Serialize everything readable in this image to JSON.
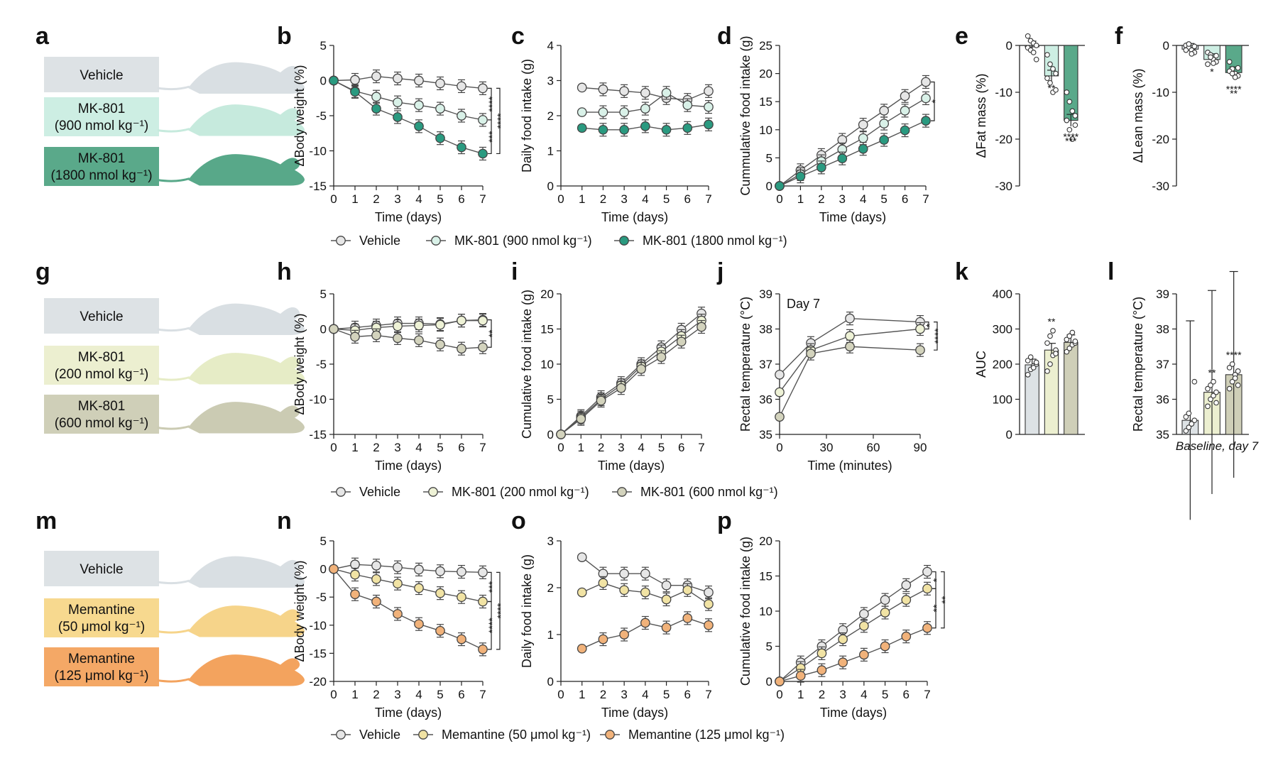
{
  "figure": {
    "rows": [
      {
        "groups": [
          {
            "label_lines": [
              "Vehicle"
            ],
            "fill": "#dde2e5",
            "mouse": "#d9dfe3"
          },
          {
            "label_lines": [
              "MK-801",
              "(900 nmol kg⁻¹)"
            ],
            "fill": "#cdeee3",
            "mouse": "#c6eadd"
          },
          {
            "label_lines": [
              "MK-801",
              "(1800 nmol kg⁻¹)"
            ],
            "fill": "#5aa98a",
            "mouse": "#58a889"
          }
        ],
        "legend": [
          "Vehicle",
          "MK-801 (900 nmol kg⁻¹)",
          "MK-801 (1800 nmol kg⁻¹)"
        ],
        "marker_fill": [
          "#e6e6e6",
          "#d9f1e8",
          "#2a9a80"
        ]
      },
      {
        "groups": [
          {
            "label_lines": [
              "Vehicle"
            ],
            "fill": "#dde2e5",
            "mouse": "#d9dfe3"
          },
          {
            "label_lines": [
              "MK-801",
              "(200 nmol kg⁻¹)"
            ],
            "fill": "#ecefd0",
            "mouse": "#e6ecc6"
          },
          {
            "label_lines": [
              "MK-801",
              "(600 nmol kg⁻¹)"
            ],
            "fill": "#cfcfb8",
            "mouse": "#cbcbb3"
          }
        ],
        "legend": [
          "Vehicle",
          "MK-801 (200 nmol kg⁻¹)",
          "MK-801 (600 nmol kg⁻¹)"
        ],
        "marker_fill": [
          "#e6e6e6",
          "#eef2d6",
          "#d3d3bd"
        ]
      },
      {
        "groups": [
          {
            "label_lines": [
              "Vehicle"
            ],
            "fill": "#dde2e5",
            "mouse": "#d9dfe3"
          },
          {
            "label_lines": [
              "Memantine",
              "(50 μmol kg⁻¹)"
            ],
            "fill": "#f7d98f",
            "mouse": "#f6d48a"
          },
          {
            "label_lines": [
              "Memantine",
              "(125 μmol kg⁻¹)"
            ],
            "fill": "#f4a866",
            "mouse": "#f3a35e"
          }
        ],
        "legend": [
          "Vehicle",
          "Memantine (50 μmol kg⁻¹)",
          "Memantine (125 μmol kg⁻¹)"
        ],
        "marker_fill": [
          "#e6e6e6",
          "#f1e3a4",
          "#f1b27a"
        ]
      }
    ],
    "panel_letters": [
      "a",
      "b",
      "c",
      "d",
      "e",
      "f",
      "g",
      "h",
      "i",
      "j",
      "k",
      "l",
      "m",
      "n",
      "o",
      "p"
    ]
  },
  "chart_data": [
    {
      "id": "b",
      "type": "line",
      "xlabel": "Time (days)",
      "ylabel": "ΔBody weight (%)",
      "x": [
        0,
        1,
        2,
        3,
        4,
        5,
        6,
        7
      ],
      "xticks": [
        0,
        1,
        2,
        3,
        4,
        5,
        6,
        7
      ],
      "ylim": [
        -15,
        5
      ],
      "yticks": [
        5,
        0,
        -5,
        -10,
        -15
      ],
      "series": [
        {
          "values": [
            0,
            0.1,
            0.6,
            0.3,
            0,
            -0.4,
            -0.8,
            -1.1
          ]
        },
        {
          "values": [
            0,
            -1.5,
            -2.3,
            -3.1,
            -3.5,
            -4.0,
            -5.0,
            -5.6
          ]
        },
        {
          "values": [
            0,
            -1.6,
            -4.0,
            -5.2,
            -6.5,
            -8.2,
            -9.5,
            -10.4
          ]
        }
      ],
      "annotations": [
        "****",
        "****",
        "***"
      ]
    },
    {
      "id": "c",
      "type": "line",
      "xlabel": "Time (days)",
      "ylabel": "Daily food intake (g)",
      "x": [
        1,
        2,
        3,
        4,
        5,
        6,
        7
      ],
      "xticks": [
        0,
        1,
        2,
        3,
        4,
        5,
        6,
        7
      ],
      "ylim": [
        0,
        4
      ],
      "yticks": [
        4,
        3,
        2,
        1,
        0
      ],
      "series": [
        {
          "values": [
            2.8,
            2.75,
            2.7,
            2.65,
            2.5,
            2.45,
            2.7
          ]
        },
        {
          "values": [
            2.1,
            2.1,
            2.1,
            2.2,
            2.65,
            2.3,
            2.25
          ]
        },
        {
          "values": [
            1.65,
            1.6,
            1.6,
            1.7,
            1.6,
            1.65,
            1.75
          ]
        }
      ]
    },
    {
      "id": "d",
      "type": "line",
      "xlabel": "Time (days)",
      "ylabel": "Cummulative food intake (g)",
      "x": [
        0,
        1,
        2,
        3,
        4,
        5,
        6,
        7
      ],
      "xticks": [
        0,
        1,
        2,
        3,
        4,
        5,
        6,
        7
      ],
      "ylim": [
        0,
        25
      ],
      "yticks": [
        25,
        20,
        15,
        10,
        5,
        0
      ],
      "series": [
        {
          "values": [
            0,
            2.8,
            5.5,
            8.2,
            10.9,
            13.4,
            16.0,
            18.5
          ]
        },
        {
          "values": [
            0,
            2.1,
            4.4,
            6.5,
            8.5,
            11.1,
            13.4,
            15.6
          ]
        },
        {
          "values": [
            0,
            1.7,
            3.3,
            4.9,
            6.6,
            8.2,
            9.9,
            11.6
          ]
        }
      ],
      "annotations": [
        "*"
      ]
    },
    {
      "id": "e",
      "type": "bar",
      "ylabel": "ΔFat mass (%)",
      "ylim": [
        -30,
        0
      ],
      "yticks": [
        0,
        -10,
        -20,
        -30
      ],
      "values": [
        -0.3,
        -6.5,
        -16.0
      ],
      "points": [
        [
          2,
          1,
          0.5,
          0,
          -0.5,
          -1,
          -1.5,
          -3
        ],
        [
          -2,
          -4,
          -5,
          -6,
          -7,
          -8,
          -10,
          -9.5
        ],
        [
          -10,
          -12,
          -14,
          -15,
          -16,
          -18,
          -20,
          -17
        ]
      ],
      "annotations": [
        "**",
        "****",
        "***"
      ]
    },
    {
      "id": "f",
      "type": "bar",
      "ylabel": "ΔLean mass (%)",
      "ylim": [
        -30,
        0
      ],
      "yticks": [
        0,
        -10,
        -20,
        -30
      ],
      "values": [
        -0.8,
        -3.0,
        -5.8
      ],
      "points": [
        [
          0,
          -0.5,
          -1,
          -1.5,
          -1,
          0.3,
          -1.8,
          -0.2
        ],
        [
          -1.5,
          -2,
          -3,
          -3.5,
          -4,
          -2.5,
          -3.8,
          -2.2
        ],
        [
          -3.5,
          -5,
          -6,
          -6.5,
          -5.5,
          -6,
          -6.8,
          -4.8
        ]
      ],
      "annotations": [
        "*",
        "****",
        "**"
      ]
    },
    {
      "id": "h",
      "type": "line",
      "xlabel": "Time (days)",
      "ylabel": "ΔBody weight (%)",
      "x": [
        0,
        1,
        2,
        3,
        4,
        5,
        6,
        7
      ],
      "xticks": [
        0,
        1,
        2,
        3,
        4,
        5,
        6,
        7
      ],
      "ylim": [
        -15,
        5
      ],
      "yticks": [
        5,
        0,
        -5,
        -10,
        -15
      ],
      "series": [
        {
          "values": [
            0,
            0.2,
            0.5,
            0.8,
            0.8,
            0.7,
            1.2,
            1.3
          ]
        },
        {
          "values": [
            0,
            -0.2,
            0.2,
            0.4,
            0.5,
            0.6,
            1.2,
            1.2
          ]
        },
        {
          "values": [
            0,
            -1.1,
            -0.9,
            -1.3,
            -1.6,
            -2.2,
            -2.8,
            -2.6
          ]
        }
      ],
      "annotations": [
        "**"
      ]
    },
    {
      "id": "i",
      "type": "line",
      "xlabel": "Time (days)",
      "ylabel": "Cumulative food intake (g)",
      "x": [
        0,
        1,
        2,
        3,
        4,
        5,
        6,
        7
      ],
      "xticks": [
        0,
        1,
        2,
        3,
        4,
        5,
        6,
        7
      ],
      "ylim": [
        0,
        20
      ],
      "yticks": [
        20,
        15,
        10,
        5,
        0
      ],
      "series": [
        {
          "values": [
            0,
            2.6,
            5.3,
            7.3,
            10.0,
            12.4,
            14.9,
            17.2
          ]
        },
        {
          "values": [
            0,
            2.4,
            5.0,
            7.0,
            9.7,
            11.8,
            14.0,
            16.2
          ]
        },
        {
          "values": [
            0,
            2.2,
            4.8,
            6.6,
            9.3,
            11.0,
            13.2,
            15.3
          ]
        }
      ]
    },
    {
      "id": "j",
      "type": "line",
      "title": "Day 7",
      "xlabel": "Time (minutes)",
      "ylabel": "Rectal temperature (°C)",
      "x": [
        0,
        20,
        45,
        90
      ],
      "xticks": [
        0,
        30,
        60,
        90
      ],
      "ylim": [
        35,
        39
      ],
      "yticks": [
        39,
        38,
        37,
        36,
        35
      ],
      "series": [
        {
          "values": [
            36.7,
            37.6,
            38.3,
            38.2
          ]
        },
        {
          "values": [
            36.2,
            37.4,
            37.8,
            38.0
          ]
        },
        {
          "values": [
            35.5,
            37.3,
            37.5,
            37.4
          ]
        }
      ],
      "annotations": [
        "*",
        "****"
      ]
    },
    {
      "id": "k",
      "type": "bar",
      "ylabel": "AUC",
      "ylim": [
        0,
        400
      ],
      "yticks": [
        400,
        300,
        200,
        100,
        0
      ],
      "values": [
        198,
        240,
        262
      ],
      "points": [
        [
          170,
          185,
          195,
          200,
          210,
          220,
          190,
          205
        ],
        [
          180,
          200,
          225,
          240,
          260,
          280,
          295,
          230
        ],
        [
          235,
          245,
          255,
          260,
          270,
          280,
          290,
          265
        ]
      ],
      "annotations": [
        "**"
      ]
    },
    {
      "id": "l",
      "type": "bar",
      "ylabel": "Rectal temperature (°C)",
      "xlabel": "Baseline, day 7",
      "ylim": [
        35,
        39
      ],
      "yticks": [
        39,
        38,
        37,
        36,
        35
      ],
      "values": [
        35.4,
        36.2,
        36.7
      ],
      "points": [
        [
          35.1,
          35.2,
          35.3,
          35.4,
          35.5,
          35.6,
          35.3,
          36.5
        ],
        [
          35.8,
          36.0,
          36.1,
          36.2,
          36.3,
          36.4,
          36.5,
          35.9
        ],
        [
          36.3,
          36.5,
          36.7,
          36.8,
          36.9,
          37.0,
          36.6,
          36.4
        ]
      ],
      "annotations": [
        "**",
        "****"
      ]
    },
    {
      "id": "n",
      "type": "line",
      "xlabel": "Time (days)",
      "ylabel": "ΔBody weight (%)",
      "x": [
        0,
        1,
        2,
        3,
        4,
        5,
        6,
        7
      ],
      "xticks": [
        0,
        1,
        2,
        3,
        4,
        5,
        6,
        7
      ],
      "ylim": [
        -20,
        5
      ],
      "yticks": [
        5,
        0,
        -5,
        -10,
        -15,
        -20
      ],
      "series": [
        {
          "values": [
            0,
            0.8,
            0.6,
            0.3,
            -0.1,
            -0.4,
            -0.5,
            -0.6
          ]
        },
        {
          "values": [
            0,
            -1.0,
            -1.8,
            -2.6,
            -3.4,
            -4.3,
            -5.0,
            -5.8
          ]
        },
        {
          "values": [
            0,
            -4.5,
            -5.8,
            -8.0,
            -9.8,
            -11.0,
            -12.5,
            -14.3
          ]
        }
      ],
      "annotations": [
        "***",
        "****",
        "****"
      ]
    },
    {
      "id": "o",
      "type": "line",
      "xlabel": "Time (days)",
      "ylabel": "Daily food intake (g)",
      "x": [
        1,
        2,
        3,
        4,
        5,
        6,
        7
      ],
      "xticks": [
        0,
        1,
        2,
        3,
        4,
        5,
        6,
        7
      ],
      "ylim": [
        0,
        3
      ],
      "yticks": [
        3,
        2,
        1,
        0
      ],
      "series": [
        {
          "values": [
            2.65,
            2.3,
            2.3,
            2.3,
            2.05,
            2.05,
            1.9
          ]
        },
        {
          "values": [
            1.9,
            2.1,
            1.95,
            1.9,
            1.75,
            1.95,
            1.65
          ]
        },
        {
          "values": [
            0.7,
            0.9,
            1.0,
            1.25,
            1.15,
            1.35,
            1.2
          ]
        }
      ]
    },
    {
      "id": "p",
      "type": "line",
      "xlabel": "Time (days)",
      "ylabel": "Cumulative food intake (g)",
      "x": [
        0,
        1,
        2,
        3,
        4,
        5,
        6,
        7
      ],
      "xticks": [
        0,
        1,
        2,
        3,
        4,
        5,
        6,
        7
      ],
      "ylim": [
        0,
        20
      ],
      "yticks": [
        20,
        15,
        10,
        5,
        0
      ],
      "series": [
        {
          "values": [
            0,
            2.7,
            5.0,
            7.3,
            9.6,
            11.6,
            13.7,
            15.6
          ]
        },
        {
          "values": [
            0,
            1.9,
            4.0,
            6.0,
            7.9,
            9.8,
            11.6,
            13.2
          ]
        },
        {
          "values": [
            0,
            0.8,
            1.6,
            2.7,
            3.8,
            5.0,
            6.4,
            7.6
          ]
        }
      ],
      "annotations": [
        "*",
        "**",
        "**"
      ]
    }
  ]
}
